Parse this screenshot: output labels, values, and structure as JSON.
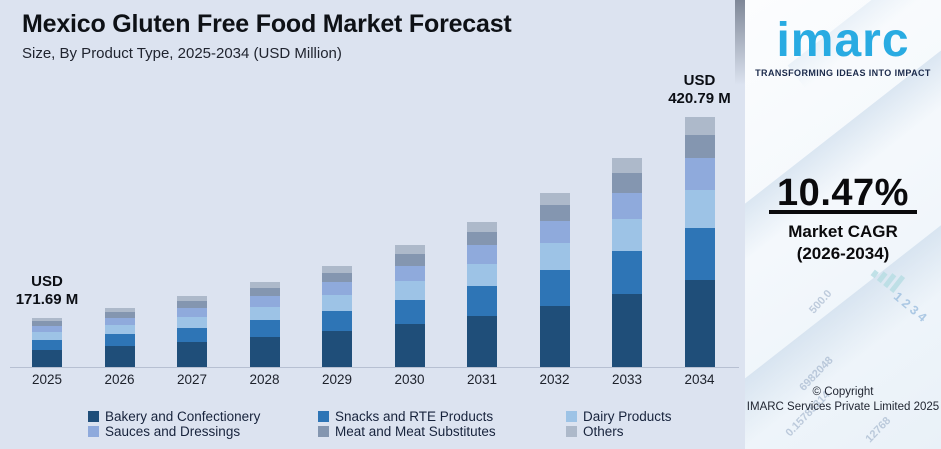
{
  "header": {
    "title": "Mexico Gluten Free Food Market Forecast",
    "subtitle": "Size, By Product Type, 2025-2034 (USD Million)"
  },
  "chart_data": {
    "type": "bar",
    "stacked": true,
    "unit": "USD Million",
    "legend_position": "bottom",
    "grid": false,
    "y_axis_visible": false,
    "categories": [
      "2025",
      "2026",
      "2027",
      "2028",
      "2029",
      "2030",
      "2031",
      "2032",
      "2033",
      "2034"
    ],
    "totals": [
      171.69,
      189.67,
      209.53,
      231.47,
      255.7,
      282.47,
      312.05,
      344.72,
      380.81,
      420.79
    ],
    "series": [
      {
        "name": "Bakery and Confectionery",
        "color": "#1F4E79",
        "values": [
          60.1,
          66.4,
          73.3,
          81.0,
          89.5,
          98.9,
          109.2,
          120.7,
          133.3,
          147.3
        ]
      },
      {
        "name": "Snacks and RTE Products",
        "color": "#2E75B6",
        "values": [
          35.2,
          38.9,
          43.0,
          47.5,
          52.4,
          57.9,
          64.0,
          70.7,
          78.1,
          86.3
        ]
      },
      {
        "name": "Dairy Products",
        "color": "#9DC3E6",
        "values": [
          26.6,
          29.4,
          32.5,
          35.9,
          39.6,
          43.8,
          48.4,
          53.4,
          59.0,
          65.2
        ]
      },
      {
        "name": "Sauces and Dressings",
        "color": "#8FAADC",
        "values": [
          21.5,
          23.7,
          26.2,
          28.9,
          32.0,
          35.3,
          39.0,
          43.1,
          47.6,
          52.6
        ]
      },
      {
        "name": "Meat and Meat Substitutes",
        "color": "#8496B0",
        "values": [
          16.3,
          18.0,
          19.9,
          22.0,
          24.3,
          26.8,
          29.6,
          32.7,
          36.2,
          40.0
        ]
      },
      {
        "name": "Others",
        "color": "#ADB9CA",
        "values": [
          12.0,
          13.3,
          14.7,
          16.2,
          17.9,
          19.8,
          21.8,
          24.1,
          26.7,
          29.5
        ]
      }
    ],
    "data_labels": [
      {
        "category": "2025",
        "lines": [
          "USD",
          "171.69 M"
        ]
      },
      {
        "category": "2034",
        "lines": [
          "USD",
          "420.79 M"
        ]
      }
    ],
    "note": "Only the 2025 and 2034 totals are labeled in the chart; per-segment values and intermediate totals are estimated from bar proportions and the stated CAGR."
  },
  "panel": {
    "logo_text": "imarc",
    "tagline": "TRANSFORMING IDEAS INTO IMPACT",
    "brand_color": "#29ABE2",
    "cagr_value": "10.47%",
    "cagr_label": "Market CAGR",
    "cagr_period": "(2026-2034)",
    "copyright_line1": "© Copyright",
    "copyright_line2": "IMARC Services Private Limited 2025",
    "decor_numbers": [
      "500.0",
      "1 2 3 4",
      "6982048",
      "0.15785314",
      "12768"
    ]
  }
}
